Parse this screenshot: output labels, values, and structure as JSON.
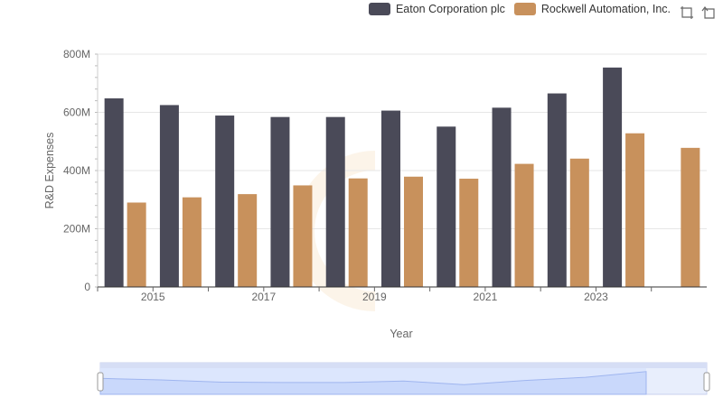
{
  "chart_data": {
    "type": "bar",
    "xlabel": "Year",
    "ylabel": "R&D Expenses",
    "categories": [
      "2014",
      "2015",
      "2016",
      "2017",
      "2018",
      "2019",
      "2020",
      "2021",
      "2022",
      "2023",
      "2024"
    ],
    "x_tick_labels": [
      "2015",
      "2017",
      "2019",
      "2021",
      "2023"
    ],
    "y_tick_labels": [
      "0",
      "200M",
      "400M",
      "600M",
      "800M"
    ],
    "y_ticks": [
      0,
      200,
      400,
      600,
      800
    ],
    "ylim": [
      0,
      800
    ],
    "y_unit": "millions USD",
    "grid": true,
    "legend_position": "top-right",
    "series": [
      {
        "name": "Eaton Corporation plc",
        "color": "#4a4a58",
        "values": [
          648,
          625,
          589,
          584,
          584,
          606,
          551,
          616,
          665,
          754,
          null
        ]
      },
      {
        "name": "Rockwell Automation, Inc.",
        "color": "#c8915c",
        "values": [
          290,
          308,
          319,
          349,
          373,
          379,
          372,
          423,
          441,
          528,
          478
        ]
      }
    ]
  },
  "toolbar": {
    "zoom_icon": "zoom-select-icon",
    "reset_icon": "zoom-reset-icon"
  }
}
